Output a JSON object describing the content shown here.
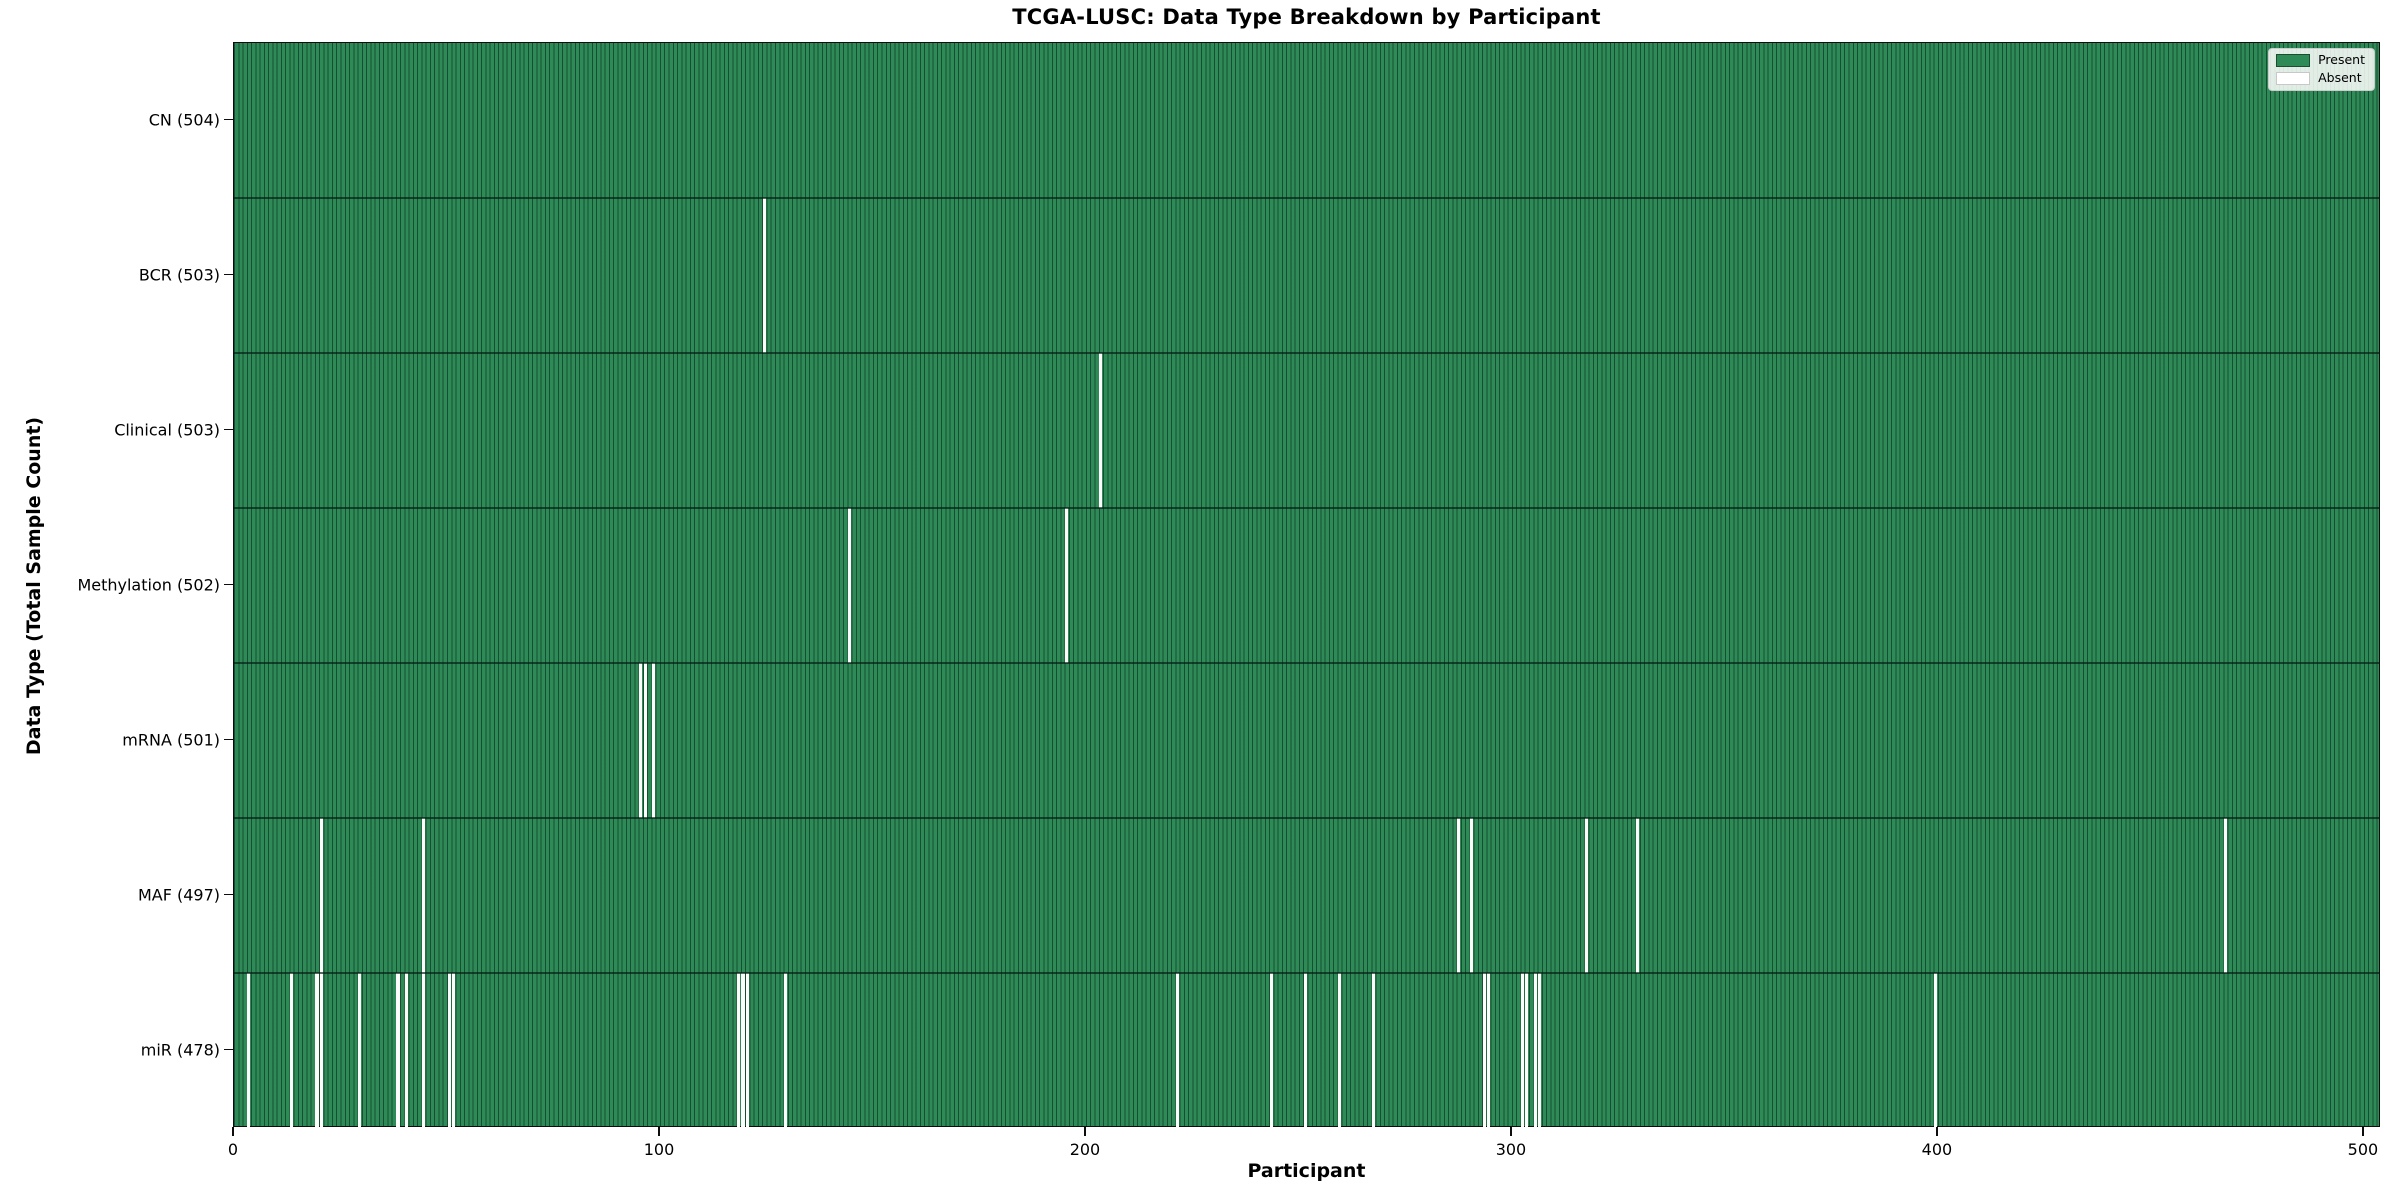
{
  "chart_data": {
    "type": "heatmap",
    "title": "TCGA-LUSC: Data Type Breakdown by Participant",
    "xlabel": "Participant",
    "ylabel": "Data Type (Total Sample Count)",
    "xlim": [
      0,
      504
    ],
    "x_ticks": [
      0,
      100,
      200,
      300,
      400,
      500
    ],
    "total_participants": 504,
    "grid": false,
    "legend_position": "upper right",
    "legend": [
      {
        "label": "Present",
        "color": "#2e8b57"
      },
      {
        "label": "Absent",
        "color": "#ffffff"
      }
    ],
    "colors": {
      "present": "#2e8b57",
      "present_edge": "#1b4d31",
      "absent": "#ffffff"
    },
    "rows": [
      {
        "name": "CN",
        "label": "CN (504)",
        "count": 504,
        "absent": []
      },
      {
        "name": "BCR",
        "label": "BCR (503)",
        "count": 503,
        "absent": [
          124
        ]
      },
      {
        "name": "Clinical",
        "label": "Clinical (503)",
        "count": 503,
        "absent": [
          203
        ]
      },
      {
        "name": "Methylation",
        "label": "Methylation (502)",
        "count": 502,
        "absent": [
          144,
          195
        ]
      },
      {
        "name": "mRNA",
        "label": "mRNA (501)",
        "count": 501,
        "absent": [
          95,
          96,
          98
        ]
      },
      {
        "name": "MAF",
        "label": "MAF (497)",
        "count": 497,
        "absent": [
          20,
          44,
          287,
          290,
          317,
          329,
          467
        ]
      },
      {
        "name": "miR",
        "label": "miR (478)",
        "count": 478,
        "absent": [
          3,
          13,
          19,
          20,
          29,
          38,
          40,
          44,
          50,
          51,
          118,
          119,
          120,
          129,
          221,
          243,
          251,
          259,
          267,
          293,
          294,
          302,
          303,
          305,
          306,
          399
        ]
      }
    ]
  }
}
